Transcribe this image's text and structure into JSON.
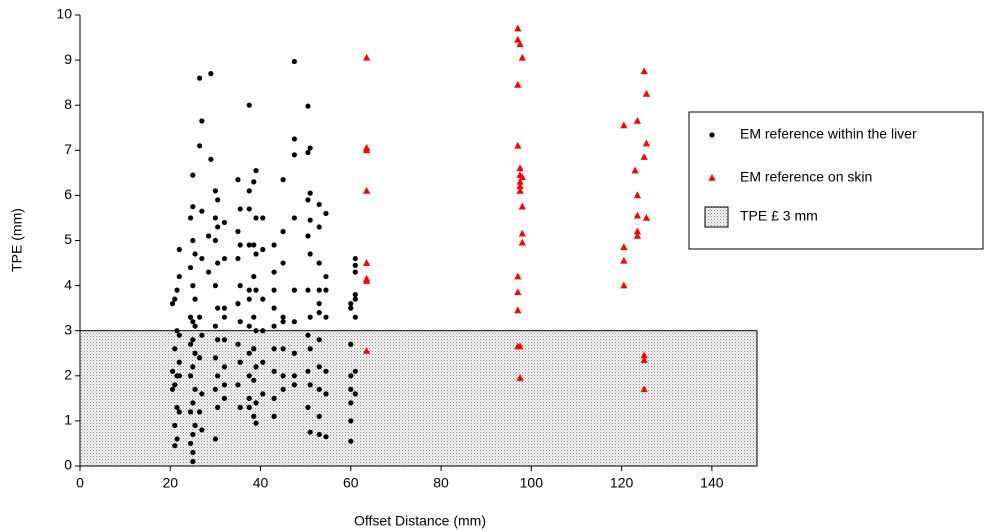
{
  "chart_data": {
    "type": "scatter",
    "x_label": "Offset Distance (mm)",
    "y_label": "TPE (mm)",
    "xlim": [
      0,
      150
    ],
    "ylim": [
      0,
      10
    ],
    "xticks": [
      0,
      20,
      40,
      60,
      80,
      100,
      120,
      140
    ],
    "yticks": [
      0,
      1,
      2,
      3,
      4,
      5,
      6,
      7,
      8,
      9,
      10
    ],
    "region": {
      "name": "TPE £ 3 mm",
      "y": [
        0,
        3
      ]
    },
    "series": [
      {
        "name": "EM reference within the liver",
        "color": "#000000",
        "marker": "circle",
        "x": [
          21,
          20.5,
          21.5,
          22,
          21,
          20.5,
          21.5,
          22,
          21,
          20.5,
          21.5,
          22,
          21,
          21.5,
          21,
          22,
          22,
          21.5,
          22,
          25,
          25,
          24.5,
          25,
          25.5,
          24.5,
          25,
          25.5,
          24.5,
          25,
          25.5,
          25,
          24.5,
          25.5,
          25,
          24.5,
          25.5,
          25,
          24.5,
          25.5,
          25,
          24.5,
          25,
          25,
          26.5,
          27,
          26.5,
          27,
          27,
          26.5,
          27,
          26.5,
          27,
          26.5,
          27,
          29,
          29,
          28.5,
          28.5,
          30,
          30.5,
          30,
          30.5,
          30,
          30.5,
          30,
          30.5,
          30,
          30.5,
          30,
          30.5,
          30,
          30.5,
          30,
          32,
          32,
          32,
          32,
          32,
          32,
          32,
          32,
          35,
          35.5,
          35,
          35.5,
          35,
          35.5,
          35,
          35.5,
          35,
          35.5,
          35,
          35.5,
          37.5,
          37.5,
          37.5,
          37.5,
          37.5,
          37.5,
          37.5,
          37.5,
          37.5,
          37.5,
          37.5,
          39,
          38.5,
          39,
          38.5,
          39,
          38.5,
          39,
          38.5,
          39,
          38.5,
          39,
          38.5,
          39,
          38.5,
          39,
          40.5,
          40.5,
          40.5,
          40.5,
          40.5,
          40.5,
          43,
          43,
          43,
          43,
          43,
          43,
          43,
          43,
          43,
          45,
          45,
          45,
          45,
          45,
          45,
          45,
          45,
          47.5,
          47.5,
          47.5,
          47.5,
          47.5,
          47.5,
          47.5,
          47.5,
          47.5,
          50.5,
          51,
          50.5,
          51,
          50.5,
          51,
          50.5,
          51,
          50.5,
          51,
          50.5,
          51,
          50.5,
          51,
          50.5,
          51,
          53,
          53,
          53,
          53,
          53,
          53,
          53,
          53,
          53,
          53,
          53,
          54.5,
          54.5,
          54.5,
          54.5,
          54.5,
          54.5,
          54.5,
          60,
          60,
          60,
          60,
          60,
          60,
          60,
          60,
          61,
          61,
          61,
          61,
          61,
          61,
          61,
          61
        ],
        "y": [
          3.7,
          3.6,
          3.0,
          2.9,
          2.6,
          2.1,
          2.0,
          2.0,
          1.8,
          1.7,
          1.3,
          1.2,
          0.9,
          0.6,
          0.45,
          4.8,
          4.2,
          3.9,
          2.3,
          6.45,
          5.75,
          5.5,
          5.0,
          4.7,
          4.4,
          4.0,
          3.7,
          3.3,
          3.2,
          3.1,
          2.8,
          2.7,
          2.5,
          2.2,
          2.0,
          1.7,
          1.4,
          1.2,
          0.9,
          0.7,
          0.5,
          0.3,
          0.1,
          8.6,
          7.65,
          7.1,
          5.65,
          4.6,
          3.3,
          2.9,
          2.4,
          1.6,
          1.2,
          0.8,
          8.7,
          6.8,
          5.1,
          4.3,
          6.1,
          5.9,
          5.5,
          5.3,
          5.0,
          4.5,
          4.0,
          3.5,
          3.1,
          2.8,
          2.4,
          2.0,
          1.7,
          1.3,
          0.6,
          5.4,
          4.6,
          3.5,
          3.3,
          2.8,
          2.2,
          1.8,
          1.5,
          6.35,
          5.7,
          5.2,
          4.9,
          4.6,
          4.0,
          3.6,
          3.2,
          2.7,
          2.3,
          1.8,
          1.3,
          8.0,
          6.1,
          5.7,
          4.9,
          3.9,
          3.7,
          3.1,
          2.5,
          2.0,
          1.5,
          1.3,
          6.55,
          6.3,
          5.5,
          4.9,
          4.7,
          4.2,
          3.9,
          3.3,
          3.0,
          2.6,
          2.2,
          1.9,
          1.4,
          1.1,
          0.95,
          5.5,
          4.8,
          3.7,
          3.0,
          2.3,
          1.6,
          4.9,
          4.3,
          3.9,
          3.5,
          3.1,
          2.6,
          2.1,
          1.5,
          1.1,
          6.35,
          5.2,
          4.5,
          3.3,
          3.2,
          2.6,
          2.0,
          1.7,
          8.97,
          7.25,
          6.9,
          5.5,
          3.9,
          3.2,
          2.5,
          2.0,
          1.8,
          7.98,
          7.05,
          6.95,
          6.05,
          5.9,
          5.45,
          5.1,
          4.7,
          3.9,
          3.3,
          2.9,
          2.6,
          2.1,
          1.8,
          1.3,
          0.75,
          5.8,
          5.3,
          4.5,
          3.9,
          3.6,
          3.4,
          2.8,
          2.2,
          1.7,
          1.1,
          0.7,
          5.6,
          4.2,
          3.9,
          3.3,
          2.1,
          1.6,
          0.65,
          3.6,
          3.5,
          2.7,
          2.0,
          1.7,
          1.4,
          1.0,
          0.55,
          4.6,
          4.45,
          4.3,
          3.8,
          3.7,
          3.3,
          2.1,
          1.6
        ]
      },
      {
        "name": "EM reference on skin",
        "color": "#ff0000",
        "marker": "triangle",
        "x": [
          63.5,
          63.5,
          63.5,
          63.5,
          63.5,
          63.5,
          63.5,
          63.5,
          97,
          97,
          97.5,
          98,
          97,
          97,
          97.5,
          97.5,
          98,
          97.5,
          97.5,
          97.5,
          98,
          98,
          98,
          97,
          97,
          97,
          97,
          97.5,
          97.5,
          120.5,
          123.5,
          125,
          125.5,
          125.5,
          125,
          123,
          123.5,
          123.5,
          123.5,
          123.5,
          125.5,
          120.5,
          120.5,
          120.5,
          125,
          125,
          125
        ],
        "y": [
          9.05,
          7.05,
          7.0,
          6.1,
          4.5,
          4.15,
          4.1,
          2.55,
          9.7,
          9.45,
          9.35,
          9.05,
          8.45,
          7.1,
          6.6,
          6.45,
          6.4,
          6.3,
          6.2,
          6.1,
          5.75,
          5.15,
          4.95,
          4.2,
          3.85,
          3.45,
          2.65,
          2.65,
          1.95,
          7.55,
          7.65,
          8.75,
          8.25,
          7.15,
          6.85,
          6.55,
          6.0,
          5.55,
          5.2,
          5.1,
          5.5,
          4.85,
          4.55,
          4.0,
          2.45,
          2.35,
          1.7
        ]
      }
    ],
    "legend": "right"
  }
}
